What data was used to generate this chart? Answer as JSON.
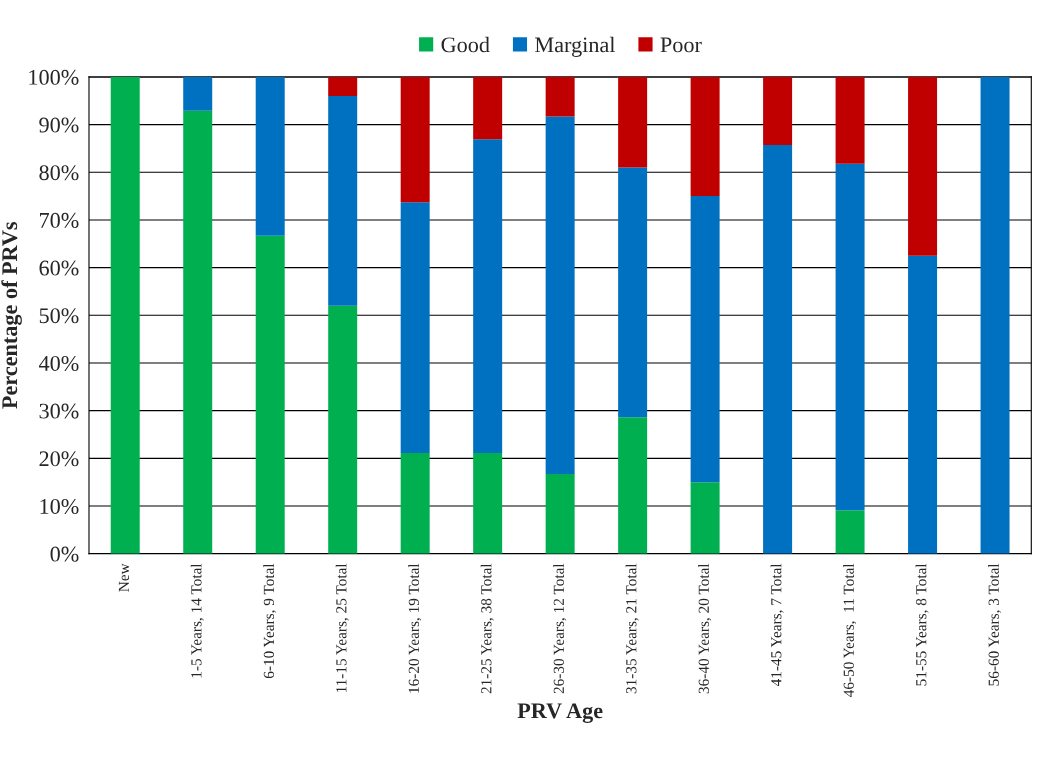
{
  "chart_data": {
    "type": "bar",
    "stacked": true,
    "xlabel": "PRV Age",
    "ylabel": "Percentage of PRVs",
    "categories": [
      "New",
      "1-5 Years, 14 Total",
      "6-10 Years, 9 Total",
      "11-15 Years, 25 Total",
      "16-20 Years, 19 Total",
      "21-25 Years, 38 Total",
      "26-30 Years, 12 Total",
      "31-35 Years, 21 Total",
      "36-40 Years, 20 Total",
      "41-45 Years, 7 Total",
      "46-50 Years,  11 Total",
      "51-55 Years, 8 Total",
      "56-60 Years, 3 Total"
    ],
    "series": [
      {
        "name": "Good",
        "color": "#00b050",
        "values": [
          100,
          92.9,
          66.7,
          52,
          21.1,
          21.1,
          16.7,
          28.6,
          15,
          0,
          9.1,
          0,
          0
        ]
      },
      {
        "name": "Marginal",
        "color": "#0070c0",
        "values": [
          0,
          7.1,
          33.3,
          44,
          52.6,
          65.8,
          75,
          52.4,
          60,
          85.7,
          72.7,
          62.5,
          100
        ]
      },
      {
        "name": "Poor",
        "color": "#c00000",
        "values": [
          0,
          0,
          0,
          4,
          26.3,
          13.2,
          8.3,
          19,
          25,
          14.3,
          18.2,
          37.5,
          0
        ]
      }
    ],
    "ylim": [
      0,
      100
    ],
    "yticks": [
      {
        "value": 0,
        "label": "0%"
      },
      {
        "value": 10,
        "label": "10%"
      },
      {
        "value": 20,
        "label": "20%"
      },
      {
        "value": 30,
        "label": "30%"
      },
      {
        "value": 40,
        "label": "40%"
      },
      {
        "value": 50,
        "label": "50%"
      },
      {
        "value": 60,
        "label": "60%"
      },
      {
        "value": 70,
        "label": "70%"
      },
      {
        "value": 80,
        "label": "80%"
      },
      {
        "value": 90,
        "label": "90%"
      },
      {
        "value": 100,
        "label": "100%"
      }
    ],
    "grid": "y",
    "legend": "top"
  }
}
